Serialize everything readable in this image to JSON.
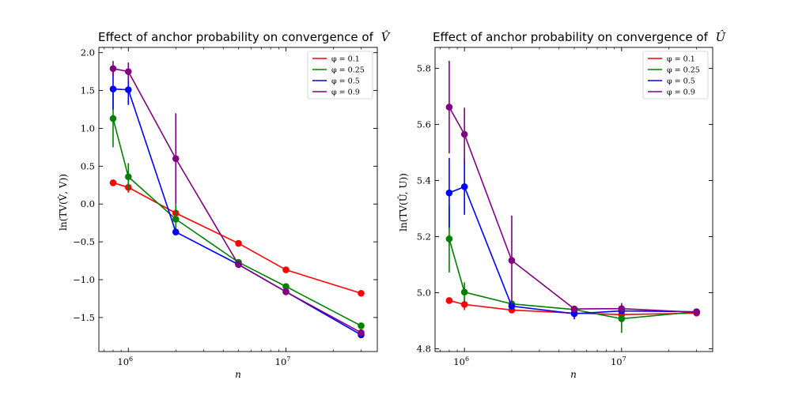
{
  "chart_data": [
    {
      "type": "line",
      "title": "Effect of anchor probability on convergence of \\widehat{V}",
      "title_text": "Effect of anchor probability on convergence of",
      "title_symbol": "V̂",
      "xlabel": "n",
      "ylabel": "ln(TV(V̂, V))",
      "x_scale": "log",
      "xlim": [
        650000,
        38000000
      ],
      "ylim": [
        -1.95,
        2.07
      ],
      "x_ticks": [
        {
          "value": 1000000,
          "base": "10",
          "exp": "6"
        },
        {
          "value": 10000000,
          "base": "10",
          "exp": "7"
        }
      ],
      "y_ticks": [
        {
          "value": -1.5,
          "label": "−1.5"
        },
        {
          "value": -1.0,
          "label": "−1.0"
        },
        {
          "value": -0.5,
          "label": "−0.5"
        },
        {
          "value": 0.0,
          "label": "0.0"
        },
        {
          "value": 0.5,
          "label": "0.5"
        },
        {
          "value": 1.0,
          "label": "1.0"
        },
        {
          "value": 1.5,
          "label": "1.5"
        },
        {
          "value": 2.0,
          "label": "2.0"
        }
      ],
      "x": [
        800000,
        1000000,
        2000000,
        5000000,
        10000000,
        30000000
      ],
      "legend_position": "top-right",
      "grid": false,
      "series": [
        {
          "name": "φ = 0.1",
          "color": "#ff0000",
          "values": [
            0.28,
            0.22,
            -0.12,
            -0.52,
            -0.87,
            -1.18
          ],
          "errors": [
            0.03,
            0.07,
            0.05,
            0.02,
            0.02,
            0.02
          ]
        },
        {
          "name": "φ = 0.25",
          "color": "#008000",
          "values": [
            1.13,
            0.36,
            -0.2,
            -0.77,
            -1.09,
            -1.61
          ],
          "errors": [
            0.38,
            0.18,
            0.2,
            0.02,
            0.02,
            0.02
          ]
        },
        {
          "name": "φ = 0.5",
          "color": "#0000ff",
          "values": [
            1.52,
            1.51,
            -0.37,
            -0.8,
            -1.16,
            -1.73
          ],
          "errors": [
            0.27,
            0.2,
            0.02,
            0.02,
            0.02,
            0.02
          ]
        },
        {
          "name": "φ = 0.9",
          "color": "#800080",
          "values": [
            1.79,
            1.75,
            0.6,
            -0.8,
            -1.16,
            -1.7
          ],
          "errors": [
            0.1,
            0.12,
            0.6,
            0.02,
            0.02,
            0.02
          ]
        }
      ]
    },
    {
      "type": "line",
      "title": "Effect of anchor probability on convergence of \\widehat{U}",
      "title_text": "Effect of anchor probability on convergence of",
      "title_symbol": "Û",
      "xlabel": "n",
      "ylabel": "ln(TV(Û, U))",
      "x_scale": "log",
      "xlim": [
        650000,
        38000000
      ],
      "ylim": [
        4.79,
        5.875
      ],
      "x_ticks": [
        {
          "value": 1000000,
          "base": "10",
          "exp": "6"
        },
        {
          "value": 10000000,
          "base": "10",
          "exp": "7"
        }
      ],
      "y_ticks": [
        {
          "value": 4.8,
          "label": "4.8"
        },
        {
          "value": 5.0,
          "label": "5.0"
        },
        {
          "value": 5.2,
          "label": "5.2"
        },
        {
          "value": 5.4,
          "label": "5.4"
        },
        {
          "value": 5.6,
          "label": "5.6"
        },
        {
          "value": 5.8,
          "label": "5.8"
        }
      ],
      "x": [
        800000,
        1000000,
        2000000,
        5000000,
        10000000,
        30000000
      ],
      "legend_position": "top-right",
      "grid": false,
      "series": [
        {
          "name": "φ = 0.1",
          "color": "#ff0000",
          "values": [
            4.972,
            4.958,
            4.938,
            4.927,
            4.922,
            4.927
          ],
          "errors": [
            0.008,
            0.02,
            0.005,
            0.004,
            0.005,
            0.004
          ]
        },
        {
          "name": "φ = 0.25",
          "color": "#008000",
          "values": [
            5.192,
            5.002,
            4.96,
            4.94,
            4.907,
            4.932
          ],
          "errors": [
            0.12,
            0.035,
            0.005,
            0.004,
            0.05,
            0.004
          ]
        },
        {
          "name": "φ = 0.5",
          "color": "#0000ff",
          "values": [
            5.356,
            5.378,
            4.952,
            4.925,
            4.935,
            4.932
          ],
          "errors": [
            0.125,
            0.1,
            0.005,
            0.02,
            0.005,
            0.01
          ]
        },
        {
          "name": "φ = 0.9",
          "color": "#800080",
          "values": [
            5.662,
            5.565,
            5.115,
            4.942,
            4.943,
            4.93
          ],
          "errors": [
            0.165,
            0.095,
            0.16,
            0.005,
            0.02,
            0.004
          ]
        }
      ]
    }
  ]
}
